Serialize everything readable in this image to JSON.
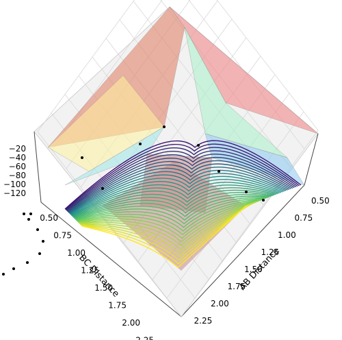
{
  "chart_data": {
    "type": "surface3d",
    "title": "",
    "xlabel": "AB Distance",
    "ylabel": "BC Distance",
    "zlabel": "",
    "x_ticks": [
      "0.50",
      "0.75",
      "1.00",
      "1.25",
      "1.50",
      "1.75",
      "2.00",
      "2.25"
    ],
    "y_ticks": [
      "0.50",
      "0.75",
      "1.00",
      "1.25",
      "1.50",
      "1.75",
      "2.00",
      "2.25"
    ],
    "z_ticks": [
      "−20",
      "−40",
      "−60",
      "−80",
      "−100",
      "−120"
    ],
    "xlim": [
      0.4,
      2.4
    ],
    "ylim": [
      0.4,
      2.4
    ],
    "zlim": [
      -125,
      -15
    ],
    "grid": true,
    "colormap": [
      "#3b0f70",
      "#21908d",
      "#5ec962",
      "#fde725"
    ],
    "surface_bands": [
      "#e07a5f",
      "#f08080",
      "#fff3a0",
      "#a8f0c8",
      "#9fe8e8",
      "#88c8f0",
      "#c98a8a"
    ],
    "trajectory": {
      "color": "#000000",
      "points": [
        [
          0.74,
          2.45
        ],
        [
          0.76,
          2.2
        ],
        [
          0.78,
          2.0
        ],
        [
          0.8,
          1.85
        ],
        [
          0.82,
          1.7
        ],
        [
          0.85,
          1.55
        ],
        [
          0.9,
          1.42
        ],
        [
          0.98,
          1.3
        ],
        [
          1.08,
          1.2
        ],
        [
          1.2,
          1.12
        ],
        [
          1.35,
          1.05
        ],
        [
          1.5,
          1.0
        ],
        [
          1.65,
          0.96
        ],
        [
          1.8,
          0.93
        ],
        [
          1.95,
          0.9
        ],
        [
          2.1,
          0.88
        ],
        [
          2.25,
          0.86
        ]
      ]
    }
  }
}
